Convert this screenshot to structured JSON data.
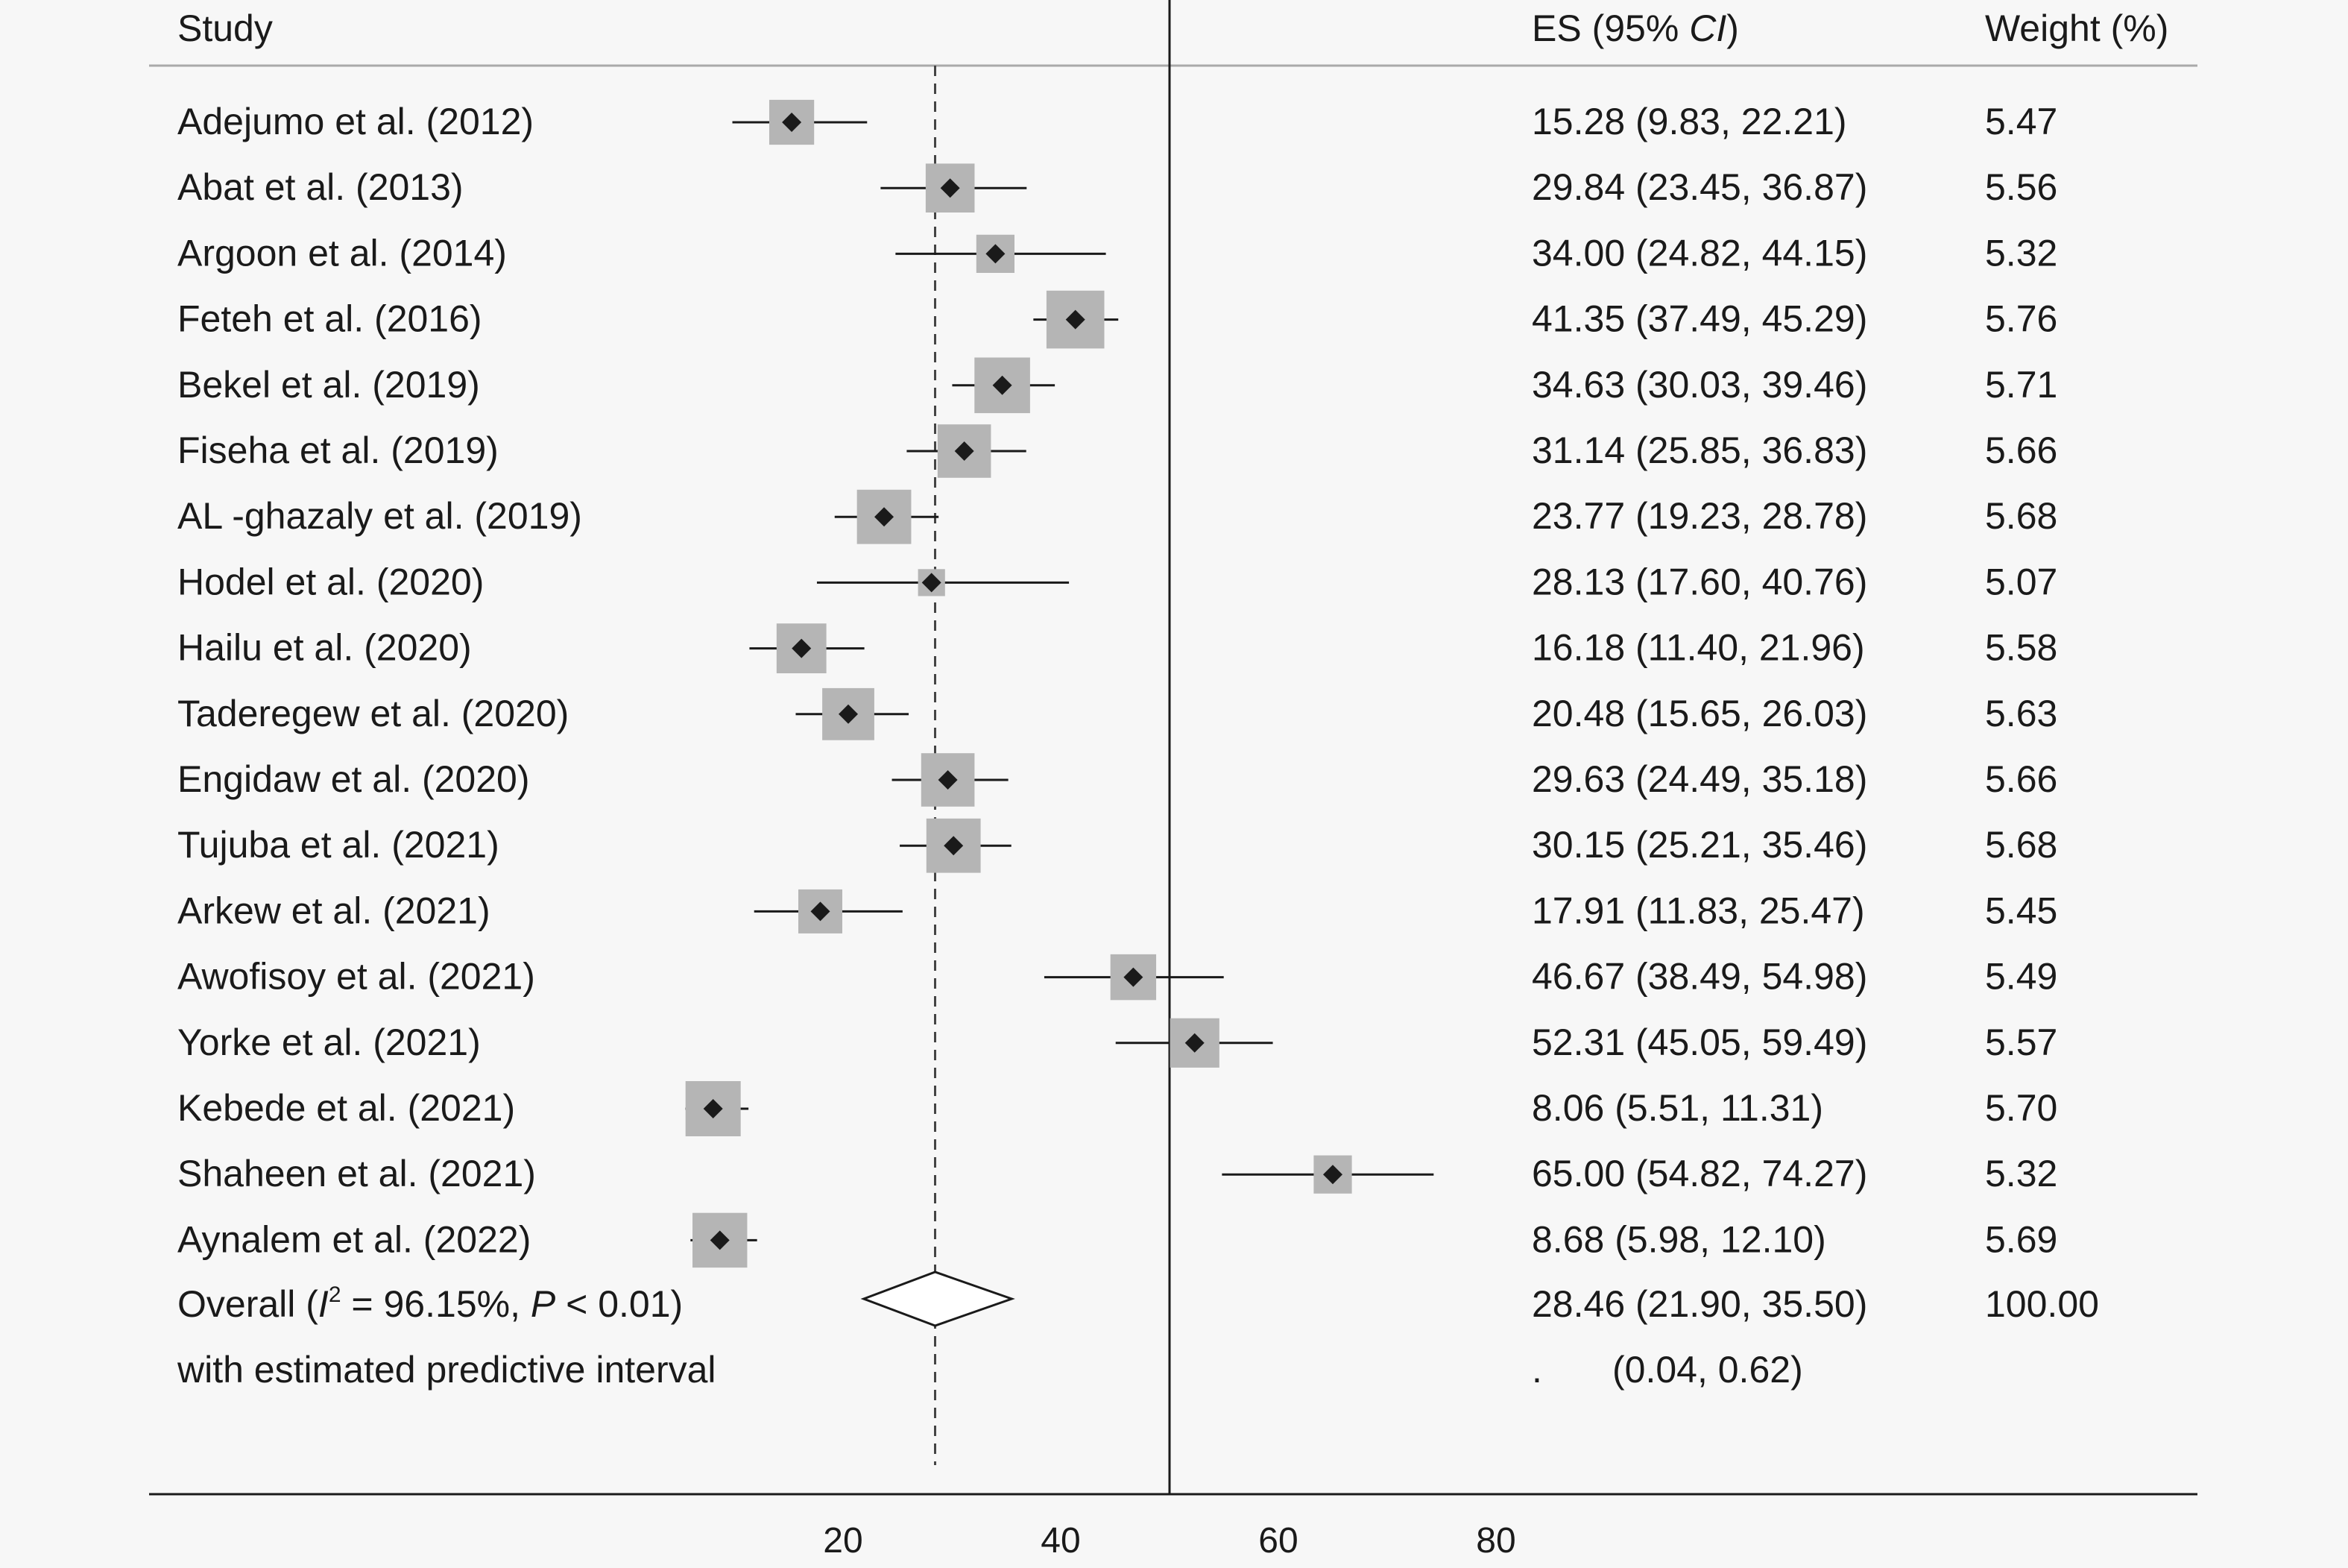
{
  "chart_data": {
    "type": "forest",
    "headers": {
      "study": "Study",
      "es": "ES (95% ",
      "es_ci": "CI",
      "es_close": ")",
      "weight": "Weight (%)"
    },
    "x_ticks": [
      20,
      40,
      60,
      80
    ],
    "xlim": [
      -10,
      100
    ],
    "null_line": 50,
    "overall_line": 28.46,
    "studies": [
      {
        "label": "Adejumo et al. (2012)",
        "es": 15.28,
        "lo": 9.83,
        "hi": 22.21,
        "es_text": "15.28 (9.83, 22.21)",
        "weight": "5.47"
      },
      {
        "label": "Abat et al. (2013)",
        "es": 29.84,
        "lo": 23.45,
        "hi": 36.87,
        "es_text": "29.84 (23.45, 36.87)",
        "weight": "5.56"
      },
      {
        "label": "Argoon et al. (2014)",
        "es": 34.0,
        "lo": 24.82,
        "hi": 44.15,
        "es_text": "34.00 (24.82, 44.15)",
        "weight": "5.32"
      },
      {
        "label": "Feteh et al. (2016)",
        "es": 41.35,
        "lo": 37.49,
        "hi": 45.29,
        "es_text": "41.35 (37.49, 45.29)",
        "weight": "5.76"
      },
      {
        "label": "Bekel et al. (2019)",
        "es": 34.63,
        "lo": 30.03,
        "hi": 39.46,
        "es_text": "34.63 (30.03, 39.46)",
        "weight": "5.71"
      },
      {
        "label": "Fiseha et al. (2019)",
        "es": 31.14,
        "lo": 25.85,
        "hi": 36.83,
        "es_text": "31.14 (25.85, 36.83)",
        "weight": "5.66"
      },
      {
        "label": "AL -ghazaly et al. (2019)",
        "es": 23.77,
        "lo": 19.23,
        "hi": 28.78,
        "es_text": "23.77 (19.23, 28.78)",
        "weight": "5.68"
      },
      {
        "label": "Hodel et al. (2020)",
        "es": 28.13,
        "lo": 17.6,
        "hi": 40.76,
        "es_text": "28.13 (17.60, 40.76)",
        "weight": "5.07"
      },
      {
        "label": "Hailu et al. (2020)",
        "es": 16.18,
        "lo": 11.4,
        "hi": 21.96,
        "es_text": "16.18 (11.40, 21.96)",
        "weight": "5.58"
      },
      {
        "label": "Taderegew et al. (2020)",
        "es": 20.48,
        "lo": 15.65,
        "hi": 26.03,
        "es_text": "20.48 (15.65, 26.03)",
        "weight": "5.63"
      },
      {
        "label": "Engidaw et al. (2020)",
        "es": 29.63,
        "lo": 24.49,
        "hi": 35.18,
        "es_text": "29.63 (24.49, 35.18)",
        "weight": "5.66"
      },
      {
        "label": "Tujuba et al. (2021)",
        "es": 30.15,
        "lo": 25.21,
        "hi": 35.46,
        "es_text": "30.15 (25.21, 35.46)",
        "weight": "5.68"
      },
      {
        "label": "Arkew et al. (2021)",
        "es": 17.91,
        "lo": 11.83,
        "hi": 25.47,
        "es_text": "17.91 (11.83, 25.47)",
        "weight": "5.45"
      },
      {
        "label": "Awofisoy et al. (2021)",
        "es": 46.67,
        "lo": 38.49,
        "hi": 54.98,
        "es_text": "46.67 (38.49, 54.98)",
        "weight": "5.49"
      },
      {
        "label": "Yorke et al. (2021)",
        "es": 52.31,
        "lo": 45.05,
        "hi": 59.49,
        "es_text": "52.31 (45.05, 59.49)",
        "weight": "5.57"
      },
      {
        "label": "Kebede et al. (2021)",
        "es": 8.06,
        "lo": 5.51,
        "hi": 11.31,
        "es_text": "8.06 (5.51, 11.31)",
        "weight": "5.70"
      },
      {
        "label": "Shaheen et al. (2021)",
        "es": 65.0,
        "lo": 54.82,
        "hi": 74.27,
        "es_text": "65.00 (54.82, 74.27)",
        "weight": "5.32"
      },
      {
        "label": "Aynalem et al. (2022)",
        "es": 8.68,
        "lo": 5.98,
        "hi": 12.1,
        "es_text": "8.68 (5.98, 12.10)",
        "weight": "5.69"
      }
    ],
    "overall": {
      "label_prefix": "Overall  (",
      "i_symbol": "I",
      "sup": "2",
      "label_mid": " = 96.15%, ",
      "p_symbol": "P",
      "label_suffix": " < 0.01)",
      "es": 28.46,
      "lo": 21.9,
      "hi": 35.5,
      "es_text": "28.46 (21.90, 35.50)",
      "weight": "100.00"
    },
    "predictive": {
      "label": "with estimated predictive interval",
      "dot": ".",
      "interval_text": "(0.04, 0.62)"
    }
  }
}
